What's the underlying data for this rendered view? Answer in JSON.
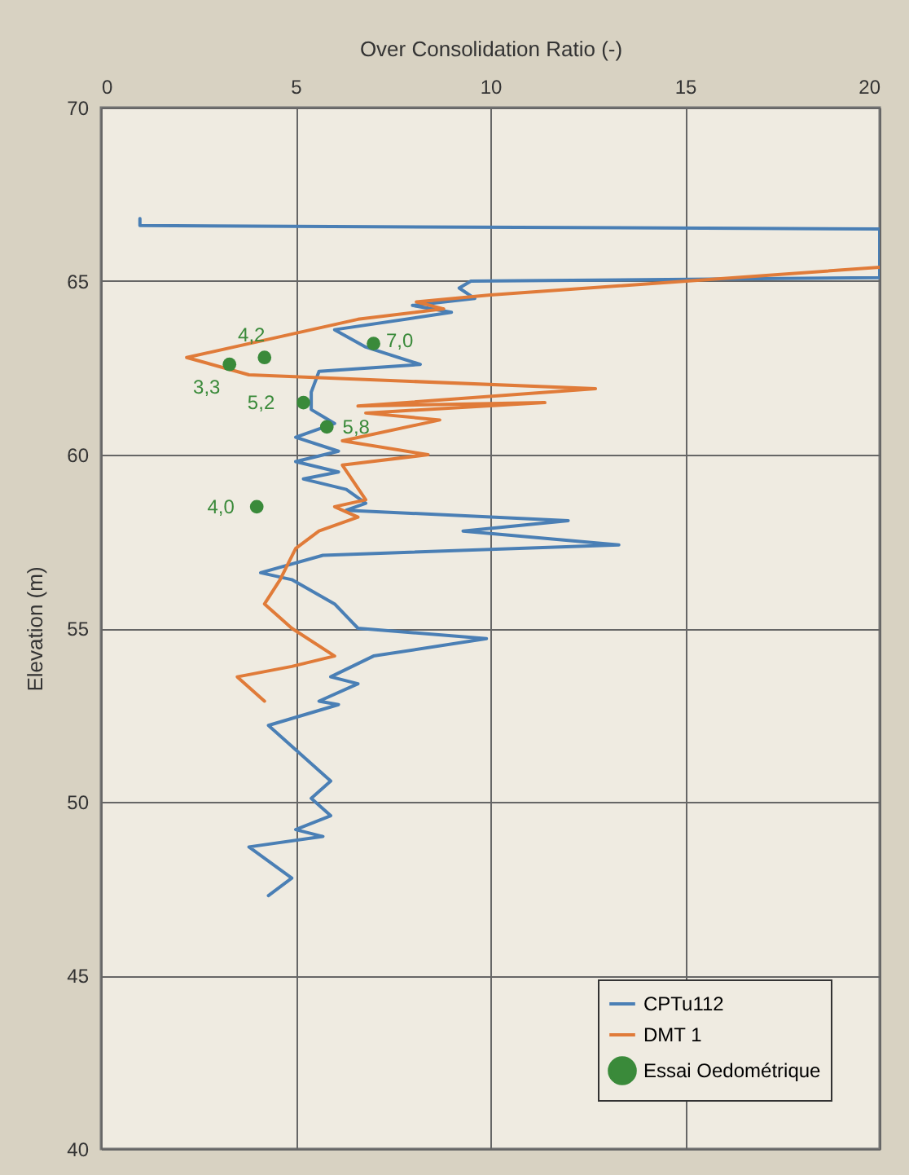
{
  "chart_data": {
    "type": "line",
    "xlabel": "Over Consolidation Ratio (-)",
    "ylabel": "Elevation (m)",
    "xlim": [
      0,
      20
    ],
    "xticks": [
      0,
      5,
      10,
      15,
      20
    ],
    "ylim": [
      40,
      70
    ],
    "yticks": [
      40,
      45,
      50,
      55,
      60,
      65,
      70
    ],
    "grid": true,
    "legend": "bottom right",
    "annotations": [
      {
        "text": "4,2",
        "x": 4.2,
        "y": 62.8
      },
      {
        "text": "3,3",
        "x": 3.3,
        "y": 62.6
      },
      {
        "text": "7,0",
        "x": 7.0,
        "y": 63.2
      },
      {
        "text": "5,2",
        "x": 5.2,
        "y": 61.5
      },
      {
        "text": "5,8",
        "x": 5.8,
        "y": 60.8
      },
      {
        "text": "4,0",
        "x": 4.0,
        "y": 58.5
      }
    ],
    "series": [
      {
        "name": "CPTu112",
        "color": "#4a7fb5",
        "x": [
          1.0,
          1.0,
          20,
          20,
          9.5,
          9.2,
          9.6,
          8.0,
          9.0,
          6.0,
          6.8,
          8.2,
          5.6,
          5.4,
          5.4,
          6.0,
          5.0,
          6.1,
          5.0,
          6.1,
          5.2,
          6.3,
          6.8,
          6.3,
          12.0,
          9.3,
          13.3,
          5.7,
          4.1,
          4.9,
          6.0,
          6.6,
          9.9,
          7.0,
          5.9,
          6.6,
          5.6,
          6.1,
          4.3,
          5.9,
          5.4,
          5.9,
          5.0,
          5.7,
          3.8,
          4.9,
          4.3
        ],
        "values": [
          66.8,
          66.6,
          66.5,
          65.1,
          65.0,
          64.8,
          64.5,
          64.3,
          64.1,
          63.6,
          63.1,
          62.6,
          62.4,
          61.8,
          61.3,
          60.9,
          60.5,
          60.1,
          59.8,
          59.5,
          59.3,
          59.0,
          58.6,
          58.4,
          58.1,
          57.8,
          57.4,
          57.1,
          56.6,
          56.4,
          55.7,
          55.0,
          54.7,
          54.2,
          53.6,
          53.4,
          52.9,
          52.8,
          52.2,
          50.6,
          50.1,
          49.6,
          49.2,
          49.0,
          48.7,
          47.8,
          47.3
        ]
      },
      {
        "name": "DMT 1",
        "color": "#e07b39",
        "x": [
          20,
          10.0,
          8.1,
          8.8,
          6.6,
          2.2,
          3.8,
          12.7,
          6.6,
          11.4,
          6.8,
          8.7,
          6.2,
          8.4,
          6.2,
          6.8,
          6.0,
          6.6,
          5.6,
          5.0,
          4.6,
          4.2,
          4.9,
          6.0,
          4.9,
          3.5,
          4.2
        ],
        "values": [
          65.4,
          64.6,
          64.4,
          64.2,
          63.9,
          62.8,
          62.3,
          61.9,
          61.4,
          61.5,
          61.2,
          61.0,
          60.4,
          60.0,
          59.7,
          58.7,
          58.5,
          58.2,
          57.8,
          57.3,
          56.4,
          55.7,
          55.0,
          54.2,
          53.9,
          53.6,
          52.9
        ]
      },
      {
        "name": "Essai Oedométrique",
        "type": "scatter",
        "marker": "circle",
        "color": "#3a8a3a",
        "x": [
          4.2,
          3.3,
          7.0,
          5.2,
          5.8,
          4.0
        ],
        "values": [
          62.8,
          62.6,
          63.2,
          61.5,
          60.8,
          58.5
        ]
      }
    ]
  }
}
